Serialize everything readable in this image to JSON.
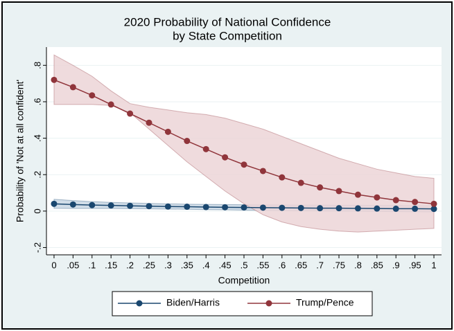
{
  "chart_data": {
    "type": "line",
    "title": [
      "2020 Probability of National Confidence",
      "by State Competition"
    ],
    "xlabel": "Competition",
    "ylabel": "Probability of 'Not at all confident'",
    "x": [
      0,
      0.05,
      0.1,
      0.15,
      0.2,
      0.25,
      0.3,
      0.35,
      0.4,
      0.45,
      0.5,
      0.55,
      0.6,
      0.65,
      0.7,
      0.75,
      0.8,
      0.85,
      0.9,
      0.95,
      1
    ],
    "xlim": [
      -0.02,
      1.02
    ],
    "ylim": [
      -0.24,
      0.9
    ],
    "xticks": [
      0,
      {
        "value": 0.05,
        "label": ".05"
      },
      {
        "value": 0.1,
        "label": ".1"
      },
      {
        "value": 0.15,
        "label": ".15"
      },
      {
        "value": 0.2,
        "label": ".2"
      },
      {
        "value": 0.25,
        "label": ".25"
      },
      {
        "value": 0.3,
        "label": ".3"
      },
      {
        "value": 0.35,
        "label": ".35"
      },
      {
        "value": 0.4,
        "label": ".4"
      },
      {
        "value": 0.45,
        "label": ".45"
      },
      {
        "value": 0.5,
        "label": ".5"
      },
      {
        "value": 0.55,
        "label": ".55"
      },
      {
        "value": 0.6,
        "label": ".6"
      },
      {
        "value": 0.65,
        "label": ".65"
      },
      {
        "value": 0.7,
        "label": ".7"
      },
      {
        "value": 0.75,
        "label": ".75"
      },
      {
        "value": 0.8,
        "label": ".8"
      },
      {
        "value": 0.85,
        "label": ".85"
      },
      {
        "value": 0.9,
        "label": ".9"
      },
      {
        "value": 0.95,
        "label": ".95"
      },
      1
    ],
    "yticks": [
      {
        "value": -0.2,
        "label": "-.2"
      },
      0,
      {
        "value": 0.2,
        "label": ".2"
      },
      {
        "value": 0.4,
        "label": ".4"
      },
      {
        "value": 0.6,
        "label": ".6"
      },
      {
        "value": 0.8,
        "label": ".8"
      }
    ],
    "grid": true,
    "legend": "bottom",
    "series": [
      {
        "name": "Biden/Harris",
        "color": "#1a476f",
        "band_color": "#c9d7e4",
        "values": [
          0.04,
          0.036,
          0.033,
          0.031,
          0.029,
          0.027,
          0.025,
          0.024,
          0.022,
          0.021,
          0.02,
          0.019,
          0.018,
          0.017,
          0.016,
          0.016,
          0.015,
          0.014,
          0.013,
          0.013,
          0.012
        ],
        "ci_upper": [
          0.065,
          0.058,
          0.052,
          0.048,
          0.045,
          0.042,
          0.04,
          0.038,
          0.037,
          0.036,
          0.035,
          0.034,
          0.034,
          0.033,
          0.033,
          0.032,
          0.032,
          0.031,
          0.031,
          0.03,
          0.03
        ],
        "ci_lower": [
          0.015,
          0.014,
          0.014,
          0.014,
          0.013,
          0.012,
          0.011,
          0.01,
          0.008,
          0.007,
          0.005,
          0.004,
          0.003,
          0.002,
          0.001,
          0.0,
          -0.001,
          -0.002,
          -0.003,
          -0.004,
          -0.005
        ]
      },
      {
        "name": "Trump/Pence",
        "color": "#90353b",
        "band_color": "#ecd5d7",
        "values": [
          0.72,
          0.68,
          0.635,
          0.585,
          0.535,
          0.485,
          0.435,
          0.385,
          0.34,
          0.295,
          0.255,
          0.22,
          0.185,
          0.155,
          0.13,
          0.11,
          0.09,
          0.075,
          0.06,
          0.05,
          0.04
        ],
        "ci_upper": [
          0.857,
          0.8,
          0.74,
          0.66,
          0.59,
          0.57,
          0.555,
          0.54,
          0.53,
          0.51,
          0.48,
          0.45,
          0.41,
          0.37,
          0.33,
          0.29,
          0.26,
          0.23,
          0.21,
          0.19,
          0.18
        ],
        "ci_lower": [
          0.585,
          0.585,
          0.585,
          0.58,
          0.54,
          0.45,
          0.36,
          0.27,
          0.19,
          0.11,
          0.04,
          -0.02,
          -0.06,
          -0.085,
          -0.1,
          -0.11,
          -0.115,
          -0.11,
          -0.105,
          -0.1,
          -0.095
        ]
      }
    ]
  }
}
